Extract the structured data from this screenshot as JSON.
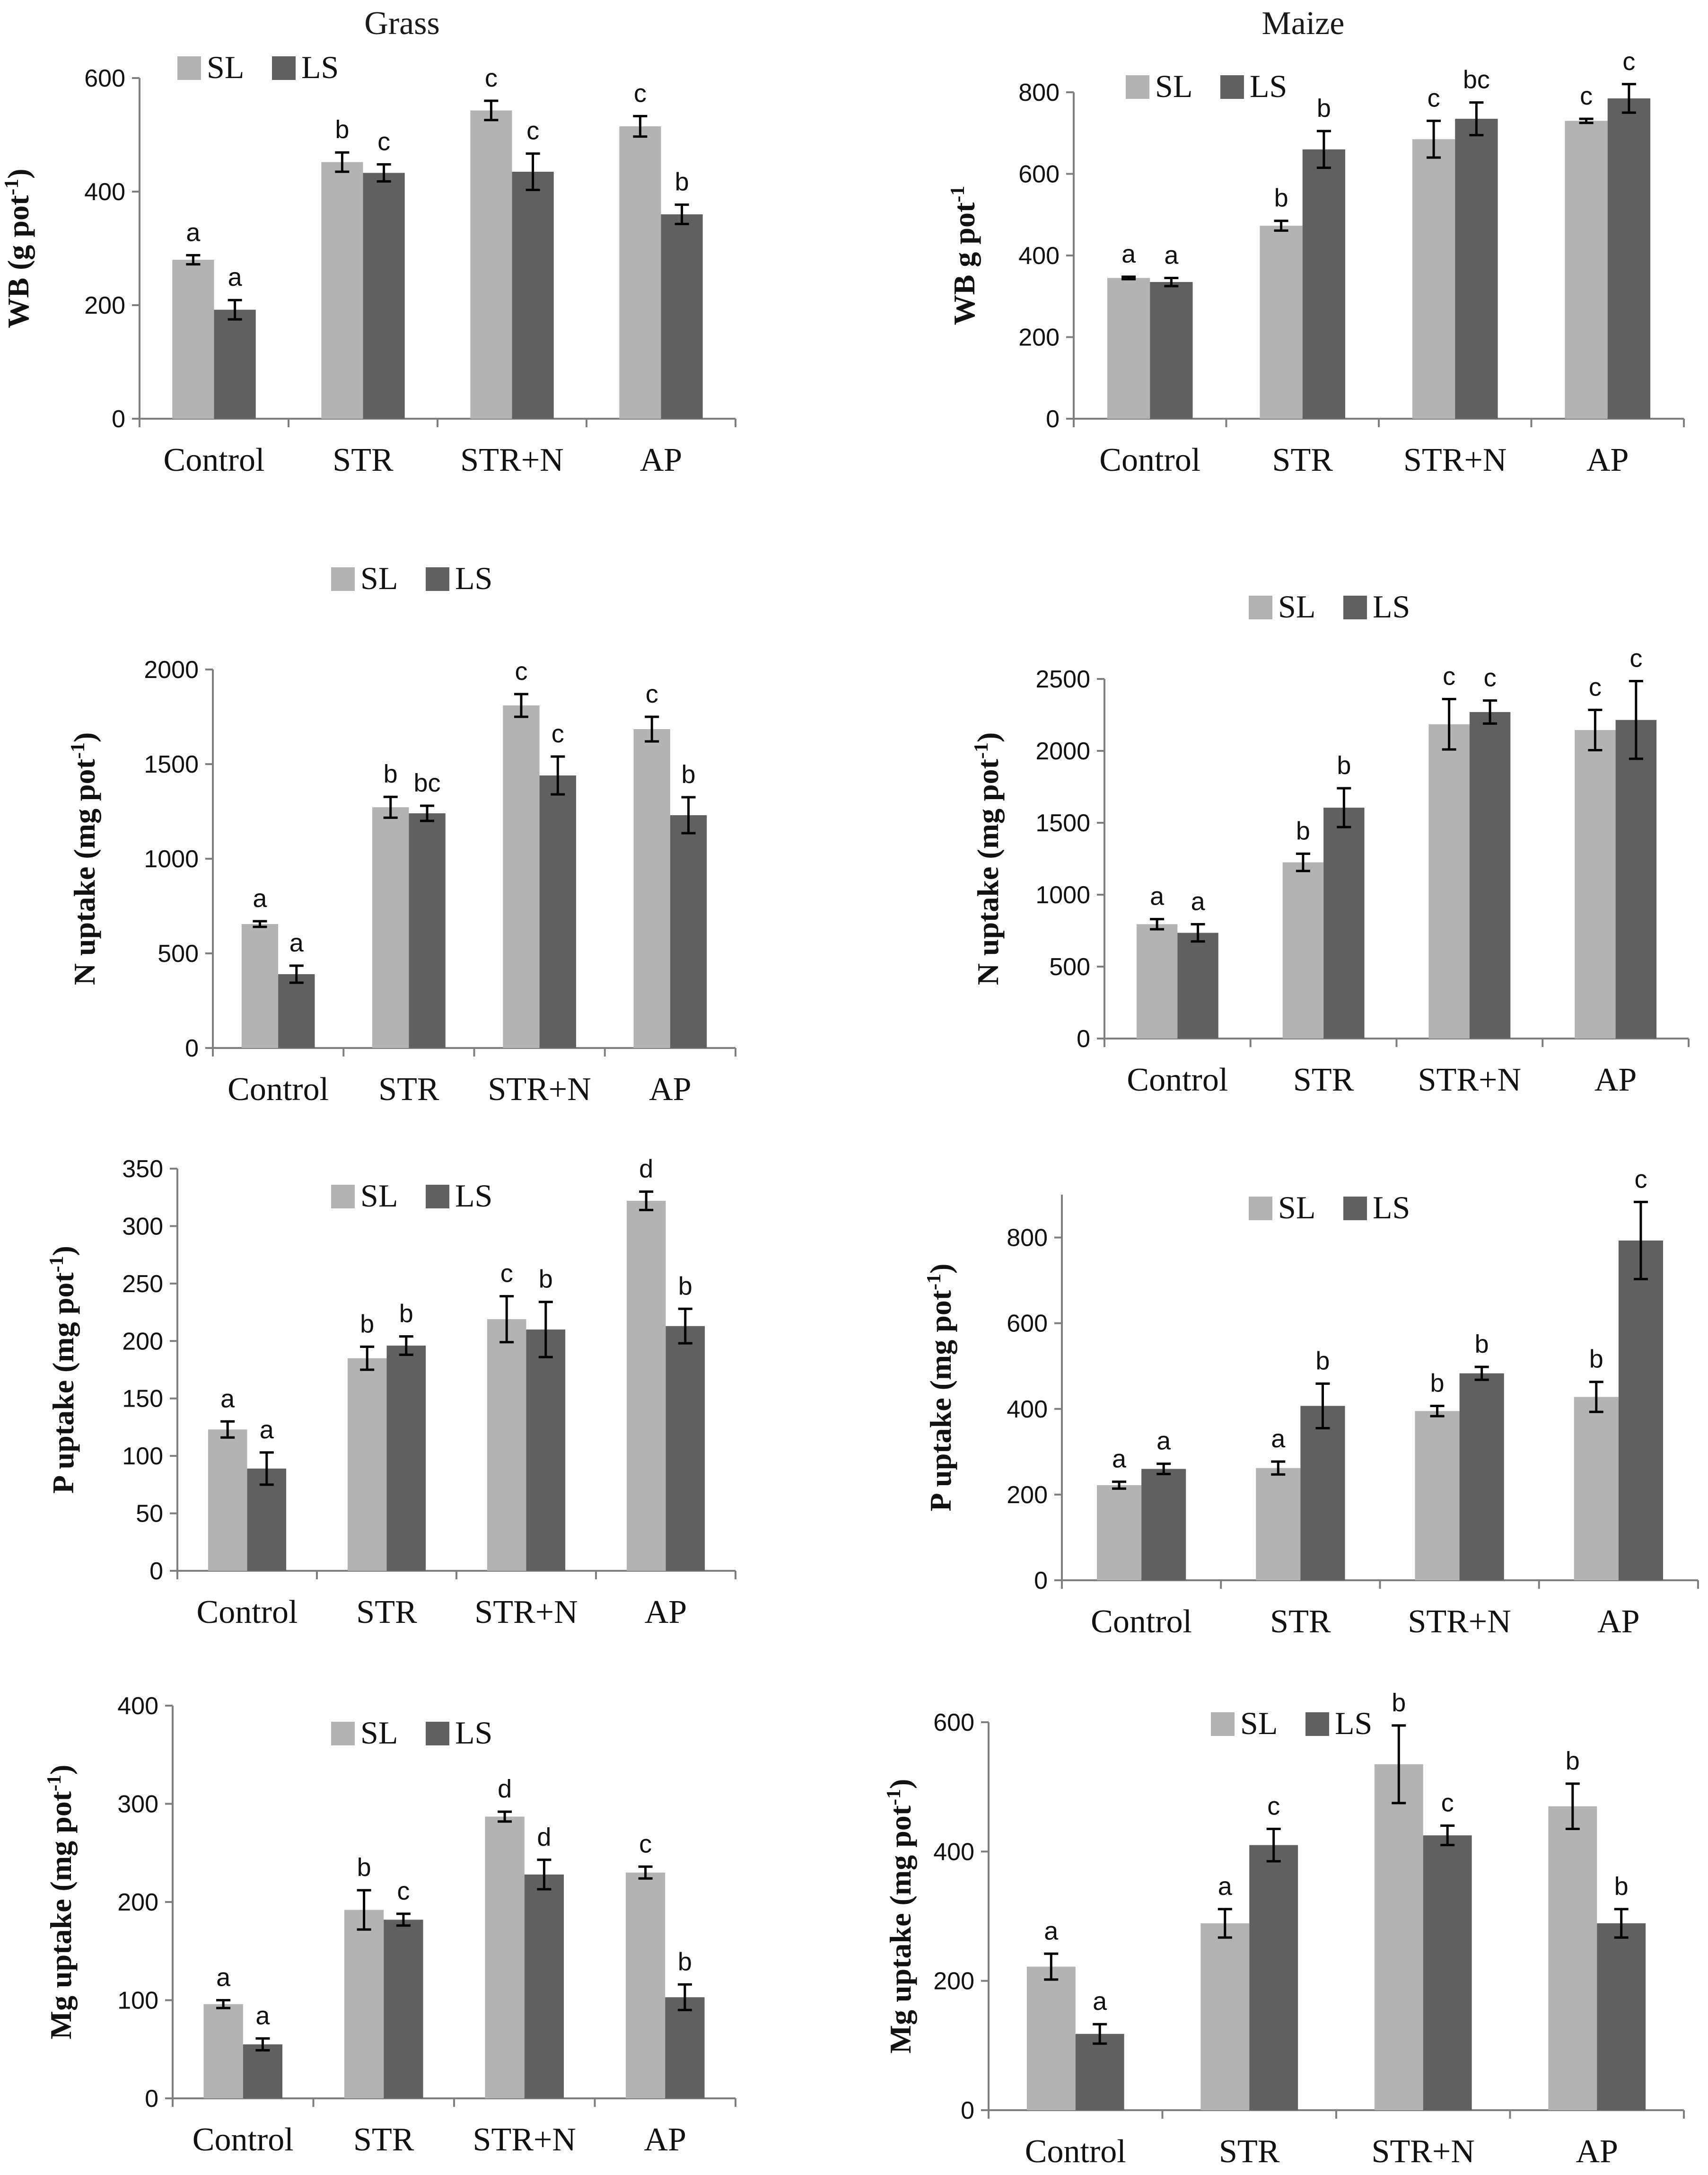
{
  "column_titles": [
    "Grass",
    "Maize"
  ],
  "colors": {
    "SL": "#b3b3b3",
    "LS": "#606060"
  },
  "chart_data": [
    {
      "type": "bar",
      "title": "Grass",
      "ylabel": "WB (g pot",
      "ylabel_sup": "-1",
      "ylabel_tail": ")",
      "categories": [
        "Control",
        "STR",
        "STR+N",
        "AP"
      ],
      "ylim": [
        0,
        600
      ],
      "yticks": [
        0,
        200,
        400,
        600
      ],
      "series": [
        {
          "name": "SL",
          "values": [
            280,
            452,
            543,
            515
          ],
          "errors": [
            8,
            17,
            17,
            18
          ],
          "letters": [
            "a",
            "b",
            "c",
            "c"
          ]
        },
        {
          "name": "LS",
          "values": [
            192,
            433,
            435,
            360
          ],
          "errors": [
            17,
            15,
            32,
            17
          ],
          "letters": [
            "a",
            "c",
            "c",
            "b"
          ]
        }
      ]
    },
    {
      "type": "bar",
      "title": "Maize",
      "ylabel": "WB g pot",
      "ylabel_sup": "-1",
      "ylabel_tail": "",
      "categories": [
        "Control",
        "STR",
        "STR+N",
        "AP"
      ],
      "ylim": [
        0,
        800
      ],
      "yticks": [
        0,
        200,
        400,
        600,
        800
      ],
      "series": [
        {
          "name": "SL",
          "values": [
            345,
            473,
            685,
            730
          ],
          "errors": [
            3,
            12,
            45,
            5
          ],
          "letters": [
            "a",
            "b",
            "c",
            "c"
          ]
        },
        {
          "name": "LS",
          "values": [
            335,
            660,
            735,
            785
          ],
          "errors": [
            10,
            45,
            40,
            35
          ],
          "letters": [
            "a",
            "b",
            "bc",
            "c"
          ]
        }
      ]
    },
    {
      "type": "bar",
      "title": "",
      "ylabel": "N uptake (mg pot",
      "ylabel_sup": "-1",
      "ylabel_tail": ")",
      "categories": [
        "Control",
        "STR",
        "STR+N",
        "AP"
      ],
      "ylim": [
        0,
        2000
      ],
      "yticks": [
        0,
        500,
        1000,
        1500,
        2000
      ],
      "series": [
        {
          "name": "SL",
          "values": [
            655,
            1272,
            1810,
            1685
          ],
          "errors": [
            15,
            55,
            60,
            65
          ],
          "letters": [
            "a",
            "b",
            "c",
            "c"
          ]
        },
        {
          "name": "LS",
          "values": [
            390,
            1240,
            1440,
            1230
          ],
          "errors": [
            45,
            40,
            100,
            95
          ],
          "letters": [
            "a",
            "bc",
            "c",
            "b"
          ]
        }
      ]
    },
    {
      "type": "bar",
      "title": "",
      "ylabel": "N uptake (mg pot",
      "ylabel_sup": "-1",
      "ylabel_tail": ")",
      "categories": [
        "Control",
        "STR",
        "STR+N",
        "AP"
      ],
      "ylim": [
        0,
        2500
      ],
      "yticks": [
        0,
        500,
        1000,
        1500,
        2000,
        2500
      ],
      "series": [
        {
          "name": "SL",
          "values": [
            795,
            1225,
            2185,
            2145
          ],
          "errors": [
            35,
            60,
            175,
            140
          ],
          "letters": [
            "a",
            "b",
            "c",
            "c"
          ]
        },
        {
          "name": "LS",
          "values": [
            735,
            1605,
            2270,
            2215
          ],
          "errors": [
            60,
            135,
            80,
            270
          ],
          "letters": [
            "a",
            "b",
            "c",
            "c"
          ]
        }
      ]
    },
    {
      "type": "bar",
      "title": "",
      "ylabel": "P uptake (mg pot",
      "ylabel_sup": "-1",
      "ylabel_tail": ")",
      "categories": [
        "Control",
        "STR",
        "STR+N",
        "AP"
      ],
      "ylim": [
        0,
        350
      ],
      "yticks": [
        0,
        50,
        100,
        150,
        200,
        250,
        300,
        350
      ],
      "series": [
        {
          "name": "SL",
          "values": [
            123,
            185,
            219,
            322
          ],
          "errors": [
            7,
            10,
            20,
            8
          ],
          "letters": [
            "a",
            "b",
            "c",
            "d"
          ]
        },
        {
          "name": "LS",
          "values": [
            89,
            196,
            210,
            213
          ],
          "errors": [
            14,
            8,
            24,
            15
          ],
          "letters": [
            "a",
            "b",
            "b",
            "b"
          ]
        }
      ]
    },
    {
      "type": "bar",
      "title": "",
      "ylabel": "P uptake (mg pot",
      "ylabel_sup": "-1",
      "ylabel_tail": ")",
      "categories": [
        "Control",
        "STR",
        "STR+N",
        "AP"
      ],
      "ylim": [
        0,
        900
      ],
      "yticks": [
        0,
        200,
        400,
        600,
        800
      ],
      "series": [
        {
          "name": "SL",
          "values": [
            222,
            262,
            395,
            428
          ],
          "errors": [
            8,
            15,
            12,
            35
          ],
          "letters": [
            "a",
            "a",
            "b",
            "b"
          ]
        },
        {
          "name": "LS",
          "values": [
            260,
            407,
            483,
            793
          ],
          "errors": [
            12,
            52,
            15,
            90
          ],
          "letters": [
            "a",
            "b",
            "b",
            "c"
          ]
        }
      ]
    },
    {
      "type": "bar",
      "title": "",
      "ylabel": "Mg uptake (mg pot",
      "ylabel_sup": "-1",
      "ylabel_tail": ")",
      "categories": [
        "Control",
        "STR",
        "STR+N",
        "AP"
      ],
      "ylim": [
        0,
        400
      ],
      "yticks": [
        0,
        100,
        200,
        300,
        400
      ],
      "series": [
        {
          "name": "SL",
          "values": [
            96,
            192,
            287,
            230
          ],
          "errors": [
            4,
            20,
            5,
            6
          ],
          "letters": [
            "a",
            "b",
            "d",
            "c"
          ]
        },
        {
          "name": "LS",
          "values": [
            55,
            182,
            228,
            103
          ],
          "errors": [
            6,
            6,
            15,
            13
          ],
          "letters": [
            "a",
            "c",
            "d",
            "b"
          ]
        }
      ]
    },
    {
      "type": "bar",
      "title": "",
      "ylabel": "Mg uptake (mg pot",
      "ylabel_sup": "-1",
      "ylabel_tail": ")",
      "categories": [
        "Control",
        "STR",
        "STR+N",
        "AP"
      ],
      "ylim": [
        0,
        600
      ],
      "yticks": [
        0,
        200,
        400,
        600
      ],
      "series": [
        {
          "name": "SL",
          "values": [
            222,
            289,
            535,
            470
          ],
          "errors": [
            20,
            22,
            60,
            35
          ],
          "letters": [
            "a",
            "a",
            "b",
            "b"
          ]
        },
        {
          "name": "LS",
          "values": [
            118,
            410,
            425,
            289
          ],
          "errors": [
            15,
            25,
            15,
            22
          ],
          "letters": [
            "a",
            "c",
            "c",
            "b"
          ]
        }
      ]
    }
  ]
}
